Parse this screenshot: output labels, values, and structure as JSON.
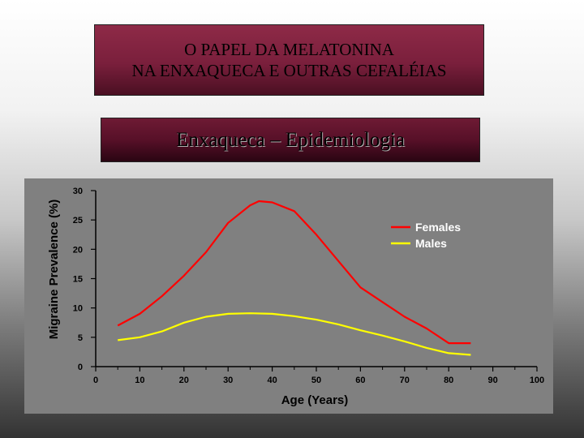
{
  "slide": {
    "title_line1": "O PAPEL DA MELATONINA",
    "title_line2": "NA ENXAQUECA E OUTRAS CEFALÉIAS",
    "subtitle": "Enxaqueca – Epidemiologia"
  },
  "chart_data": {
    "type": "line",
    "title": "",
    "xlabel": "Age (Years)",
    "ylabel": "Migraine Prevalence (%)",
    "xlim": [
      0,
      100
    ],
    "ylim": [
      0,
      30
    ],
    "xticks": [
      0,
      10,
      20,
      30,
      40,
      50,
      60,
      70,
      80,
      90,
      100
    ],
    "yticks": [
      0,
      5,
      10,
      15,
      20,
      25,
      30
    ],
    "grid": false,
    "legend": "top-right",
    "series": [
      {
        "name": "Females",
        "color": "#ff0000",
        "x": [
          5,
          10,
          15,
          20,
          25,
          30,
          35,
          37,
          40,
          45,
          50,
          55,
          60,
          65,
          70,
          75,
          80,
          85
        ],
        "y": [
          7,
          9,
          12,
          15.5,
          19.5,
          24.5,
          27.5,
          28.2,
          28,
          26.5,
          22.5,
          18,
          13.5,
          11,
          8.5,
          6.5,
          4,
          4
        ]
      },
      {
        "name": "Males",
        "color": "#ffff00",
        "x": [
          5,
          10,
          15,
          20,
          25,
          30,
          35,
          40,
          45,
          50,
          55,
          60,
          65,
          70,
          75,
          80,
          85
        ],
        "y": [
          4.5,
          5,
          6,
          7.5,
          8.5,
          9,
          9.1,
          9,
          8.6,
          8,
          7.2,
          6.2,
          5.3,
          4.3,
          3.2,
          2.3,
          2
        ]
      }
    ]
  }
}
